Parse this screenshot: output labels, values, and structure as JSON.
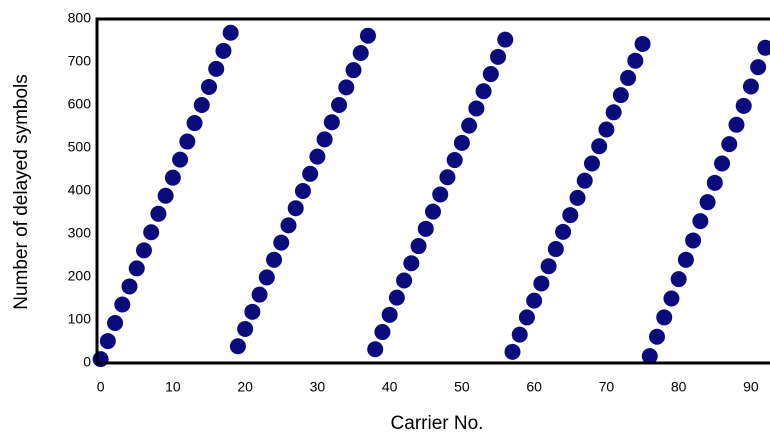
{
  "chart_data": {
    "type": "scatter",
    "xlabel": "Carrier No.",
    "ylabel": "Number of delayed symbols",
    "x": [
      0,
      1,
      2,
      3,
      4,
      5,
      6,
      7,
      8,
      9,
      10,
      11,
      12,
      13,
      14,
      15,
      16,
      17,
      18,
      19,
      20,
      21,
      22,
      23,
      24,
      25,
      26,
      27,
      28,
      29,
      30,
      31,
      32,
      33,
      34,
      35,
      36,
      37,
      38,
      39,
      40,
      41,
      42,
      43,
      44,
      45,
      46,
      47,
      48,
      49,
      50,
      51,
      52,
      53,
      54,
      55,
      56,
      57,
      58,
      59,
      60,
      61,
      62,
      63,
      64,
      65,
      66,
      67,
      68,
      69,
      70,
      71,
      72,
      73,
      74,
      75,
      76,
      77,
      78,
      79,
      80,
      81,
      82,
      83,
      84,
      85,
      86,
      87,
      88,
      89,
      90,
      91,
      92
    ],
    "values": [
      9,
      51,
      93,
      136,
      178,
      220,
      262,
      304,
      347,
      389,
      431,
      473,
      515,
      558,
      600,
      642,
      684,
      726,
      768,
      39,
      79,
      119,
      159,
      199,
      240,
      280,
      320,
      360,
      400,
      440,
      480,
      520,
      560,
      600,
      641,
      681,
      721,
      761,
      32,
      72,
      112,
      152,
      192,
      232,
      272,
      312,
      352,
      392,
      432,
      472,
      512,
      552,
      592,
      632,
      672,
      712,
      752,
      26,
      66,
      106,
      145,
      185,
      225,
      265,
      305,
      344,
      384,
      424,
      464,
      504,
      543,
      583,
      623,
      663,
      703,
      742,
      16,
      61,
      106,
      150,
      195,
      240,
      285,
      330,
      374,
      419,
      464,
      509,
      554,
      598,
      643,
      688,
      733
    ],
    "color": "#0b0b7d",
    "xlim": [
      -0.5,
      92.5
    ],
    "xticks": [
      0,
      10,
      20,
      30,
      40,
      50,
      60,
      70,
      80,
      90
    ],
    "ylim": [
      0,
      800
    ],
    "yticks": [
      0,
      100,
      200,
      300,
      400,
      500,
      600,
      700,
      800
    ],
    "grid": false
  }
}
